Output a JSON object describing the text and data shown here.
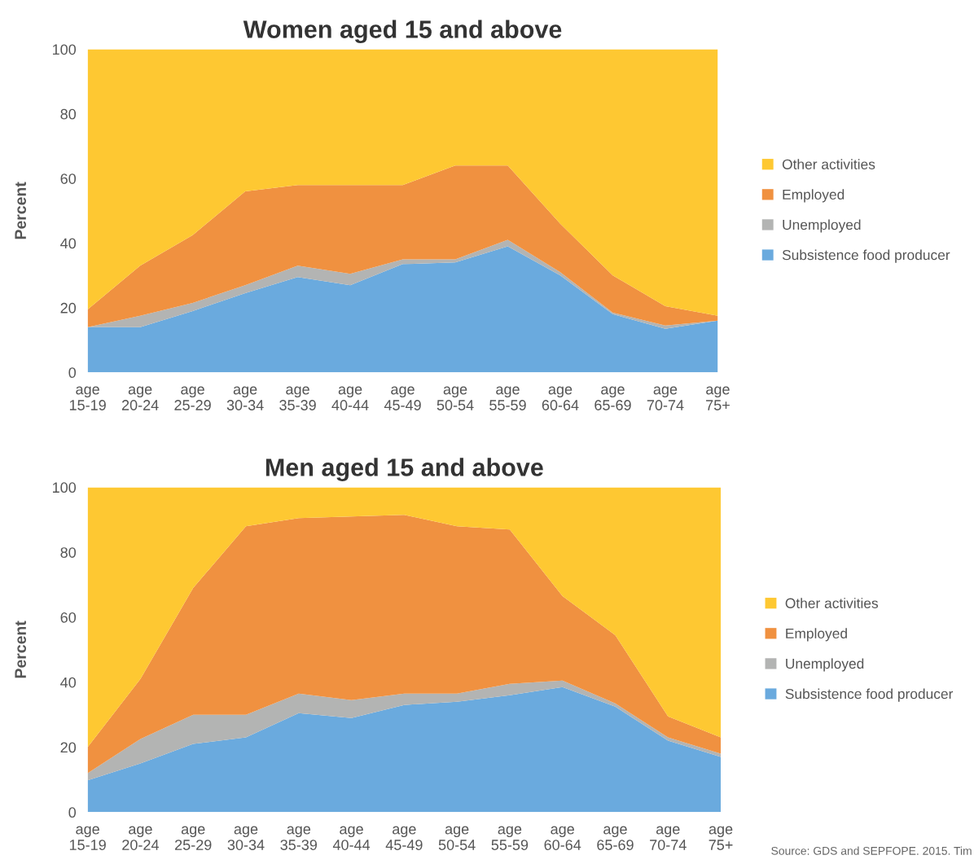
{
  "chart_data": [
    {
      "type": "area",
      "stacked": true,
      "title": "Women aged 15 and above",
      "ylabel": "Percent",
      "categories": [
        "age\n15-19",
        "age\n20-24",
        "age\n25-29",
        "age\n30-34",
        "age\n35-39",
        "age\n40-44",
        "age\n45-49",
        "age\n50-54",
        "age\n55-59",
        "age\n60-64",
        "age\n65-69",
        "age\n70-74",
        "age\n75+"
      ],
      "series": [
        {
          "name": "Subsistence food producer",
          "color": "#6aaade",
          "values": [
            14,
            14,
            19,
            24.5,
            29.5,
            27,
            33.5,
            34,
            39,
            30,
            18,
            13.5,
            16
          ]
        },
        {
          "name": "Unemployed",
          "color": "#b3b4b3",
          "values": [
            0,
            3.5,
            2.5,
            2.5,
            3.5,
            3.5,
            1.5,
            1,
            2,
            1,
            0.5,
            1,
            0
          ]
        },
        {
          "name": "Employed",
          "color": "#f09140",
          "values": [
            5.5,
            15.5,
            21,
            29,
            25,
            27.5,
            23,
            29,
            23,
            15,
            11.5,
            6,
            1.5
          ]
        },
        {
          "name": "Other activities",
          "color": "#fec832",
          "values": [
            80.5,
            67,
            57.5,
            44,
            42,
            42,
            42,
            36,
            36,
            54,
            70,
            79.5,
            82.5
          ]
        }
      ],
      "ylim": [
        0,
        100
      ],
      "yticks": [
        0,
        20,
        40,
        60,
        80,
        100
      ],
      "grid": false,
      "legend": "right"
    },
    {
      "type": "area",
      "stacked": true,
      "title": "Men aged 15 and above",
      "ylabel": "Percent",
      "categories": [
        "age\n15-19",
        "age\n20-24",
        "age\n25-29",
        "age\n30-34",
        "age\n35-39",
        "age\n40-44",
        "age\n45-49",
        "age\n50-54",
        "age\n55-59",
        "age\n60-64",
        "age\n65-69",
        "age\n70-74",
        "age\n75+"
      ],
      "series": [
        {
          "name": "Subsistence food producer",
          "color": "#6aaade",
          "values": [
            9.8,
            15,
            21,
            23,
            30.5,
            29,
            33,
            34,
            36,
            38.5,
            32.5,
            22,
            17
          ]
        },
        {
          "name": "Unemployed",
          "color": "#b3b4b3",
          "values": [
            2.2,
            7.5,
            9,
            7,
            6,
            5.5,
            3.5,
            2.5,
            3.5,
            2,
            1,
            1,
            1
          ]
        },
        {
          "name": "Employed",
          "color": "#f09140",
          "values": [
            8,
            18.5,
            39,
            58,
            54,
            56.5,
            55,
            51.5,
            47.5,
            26,
            21,
            6.5,
            5
          ]
        },
        {
          "name": "Other activities",
          "color": "#fec832",
          "values": [
            80,
            59,
            31,
            12,
            9.5,
            9,
            8.5,
            12,
            13,
            33.5,
            45.5,
            70.5,
            77
          ]
        }
      ],
      "ylim": [
        0,
        100
      ],
      "yticks": [
        0,
        20,
        40,
        60,
        80,
        100
      ],
      "grid": false,
      "legend": "right",
      "annotations": [
        "Source: GDS and SEPFOPE. 2015. Tim"
      ]
    }
  ]
}
